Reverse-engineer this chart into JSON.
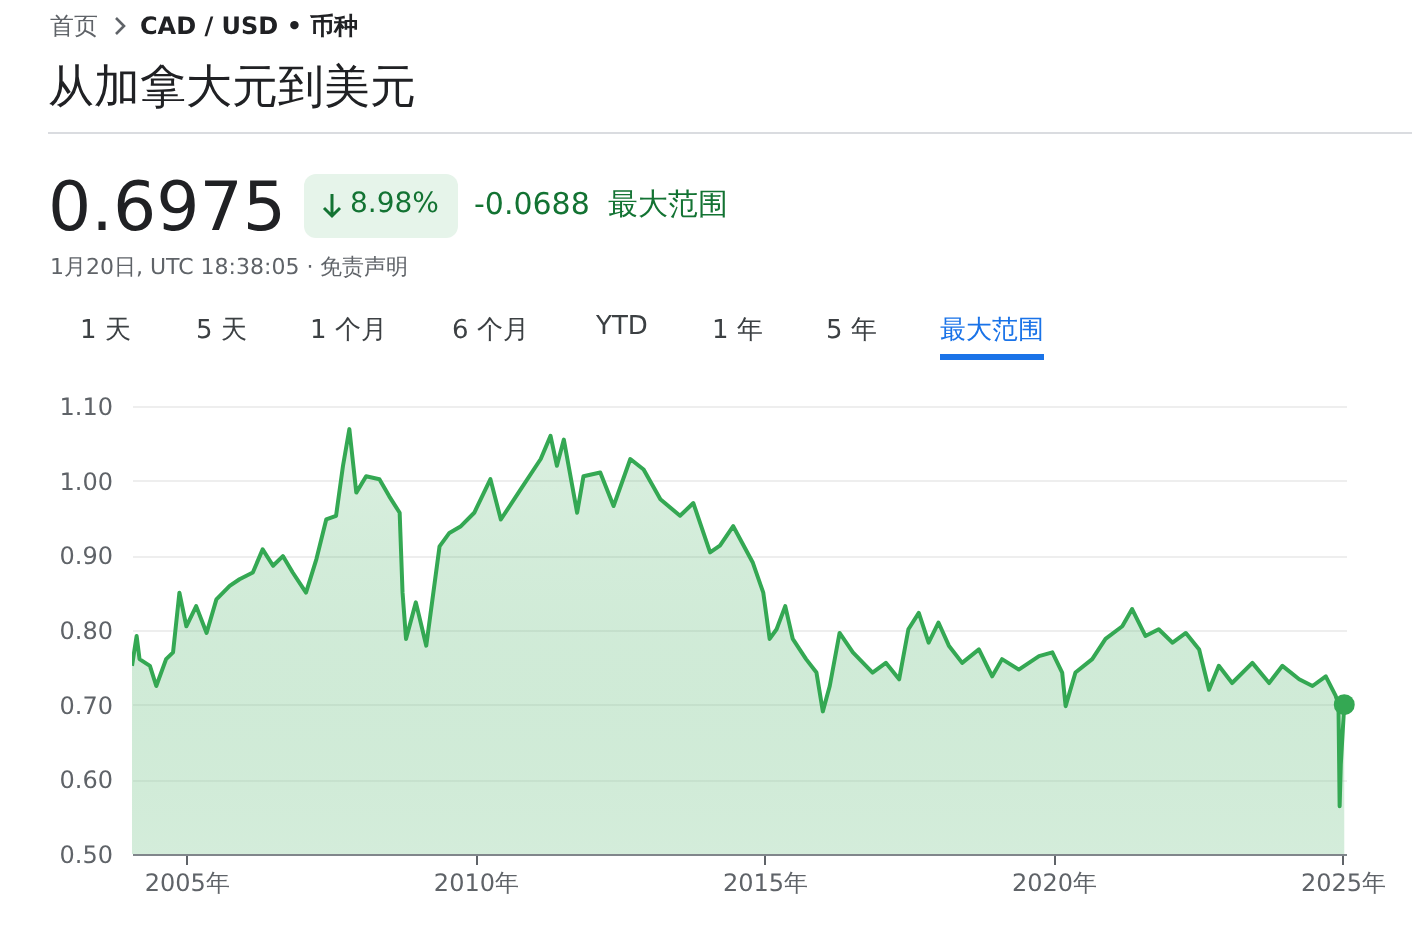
{
  "chart_data": {
    "type": "area",
    "title": "从加拿大元到美元",
    "annotations": [
      "首页",
      "CAD / USD • 币种",
      "0.6975",
      "8.98%",
      "-0.0688",
      "最大范围",
      "1月20日, UTC 18:38:05 · 免责声明",
      "1 天",
      "5 天",
      "1 个月",
      "6 个月",
      "YTD",
      "1 年",
      "5 年",
      "最大范围"
    ],
    "xlim": [
      2004.06,
      2025.06
    ],
    "xticks": [
      {
        "value": 2005,
        "label": "2005年"
      },
      {
        "value": 2010,
        "label": "2010年"
      },
      {
        "value": 2015,
        "label": "2015年"
      },
      {
        "value": 2020,
        "label": "2020年"
      },
      {
        "value": 2025,
        "label": "2025年"
      }
    ],
    "ylim": [
      0.5,
      1.1
    ],
    "yticks": [
      {
        "value": 0.5,
        "label": "0.50"
      },
      {
        "value": 0.6,
        "label": "0.60"
      },
      {
        "value": 0.7,
        "label": "0.70"
      },
      {
        "value": 0.8,
        "label": "0.80"
      },
      {
        "value": 0.9,
        "label": "0.90"
      },
      {
        "value": 1.0,
        "label": "1.00"
      },
      {
        "value": 1.1,
        "label": "1.10"
      }
    ],
    "grid": "y",
    "series": [
      {
        "color": "#34a853",
        "x": [
          2004.06,
          2004.14,
          2004.19,
          2004.37,
          2004.48,
          2004.65,
          2004.77,
          2004.88,
          2005.0,
          2005.17,
          2005.35,
          2005.52,
          2005.75,
          2005.92,
          2006.15,
          2006.32,
          2006.5,
          2006.67,
          2006.84,
          2007.07,
          2007.25,
          2007.42,
          2007.59,
          2007.71,
          2007.82,
          2007.94,
          2008.11,
          2008.34,
          2008.51,
          2008.69,
          2008.74,
          2008.8,
          2008.97,
          2009.15,
          2009.38,
          2009.55,
          2009.75,
          2009.98,
          2010.26,
          2010.44,
          2010.78,
          2011.13,
          2011.3,
          2011.41,
          2011.53,
          2011.76,
          2011.87,
          2012.16,
          2012.39,
          2012.68,
          2012.91,
          2013.2,
          2013.54,
          2013.77,
          2014.06,
          2014.23,
          2014.46,
          2014.8,
          2014.98,
          2015.09,
          2015.21,
          2015.36,
          2015.49,
          2015.72,
          2015.9,
          2016.01,
          2016.13,
          2016.3,
          2016.53,
          2016.87,
          2017.1,
          2017.33,
          2017.49,
          2017.67,
          2017.84,
          2018.01,
          2018.19,
          2018.42,
          2018.71,
          2018.94,
          2019.11,
          2019.4,
          2019.75,
          2019.98,
          2020.15,
          2020.21,
          2020.38,
          2020.67,
          2020.9,
          2021.19,
          2021.36,
          2021.59,
          2021.82,
          2022.06,
          2022.29,
          2022.52,
          2022.69,
          2022.86,
          2023.09,
          2023.44,
          2023.73,
          2023.96,
          2024.25,
          2024.48,
          2024.71,
          2024.88,
          2024.93,
          2024.95,
          2024.97,
          2025.03
        ],
        "values": [
          0.752,
          0.792,
          0.761,
          0.752,
          0.725,
          0.761,
          0.77,
          0.85,
          0.805,
          0.832,
          0.796,
          0.841,
          0.859,
          0.868,
          0.877,
          0.908,
          0.886,
          0.899,
          0.877,
          0.85,
          0.895,
          0.948,
          0.953,
          1.02,
          1.069,
          0.984,
          1.006,
          1.002,
          0.979,
          0.957,
          0.85,
          0.788,
          0.837,
          0.779,
          0.912,
          0.93,
          0.939,
          0.957,
          1.002,
          0.948,
          0.988,
          1.029,
          1.06,
          1.02,
          1.055,
          0.957,
          1.006,
          1.011,
          0.966,
          1.029,
          1.015,
          0.975,
          0.953,
          0.97,
          0.904,
          0.913,
          0.939,
          0.89,
          0.85,
          0.788,
          0.801,
          0.832,
          0.788,
          0.761,
          0.743,
          0.691,
          0.725,
          0.796,
          0.77,
          0.743,
          0.756,
          0.734,
          0.801,
          0.823,
          0.783,
          0.81,
          0.779,
          0.756,
          0.774,
          0.738,
          0.761,
          0.747,
          0.765,
          0.77,
          0.743,
          0.698,
          0.743,
          0.761,
          0.788,
          0.805,
          0.828,
          0.792,
          0.801,
          0.783,
          0.796,
          0.774,
          0.72,
          0.752,
          0.729,
          0.756,
          0.729,
          0.752,
          0.734,
          0.725,
          0.738,
          0.712,
          0.7,
          0.564,
          0.62,
          0.7
        ]
      },
      {
        "type": "scatter",
        "color": "#34a853",
        "marker": "circle",
        "x": [
          2025.03
        ],
        "values": [
          0.7
        ]
      }
    ]
  }
}
